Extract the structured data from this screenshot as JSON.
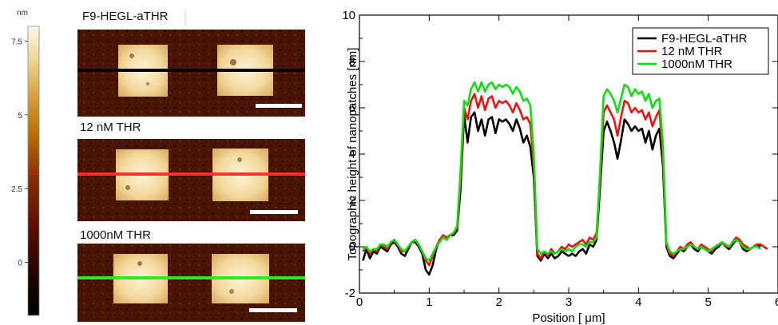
{
  "colorbar": {
    "unit": "nm",
    "ticks": [
      "7.5",
      "5",
      "2.5",
      "0"
    ],
    "tick_values": [
      7.5,
      5,
      2.5,
      0
    ],
    "range": [
      -1.8,
      8.0
    ],
    "marker_value": 3.0,
    "marker_color": "#d02020"
  },
  "afm_panels": [
    {
      "title": "F9-HEGL-aTHR",
      "line_color": "#000000"
    },
    {
      "title": "12 nM THR",
      "line_color": "#ff3030"
    },
    {
      "title": "1000nM THR",
      "line_color": "#22ee22"
    }
  ],
  "chart_data": {
    "type": "line",
    "xlabel": "Position [ μm]",
    "ylabel": "Topographic height of nanopatches [nm]",
    "xlim": [
      0,
      6
    ],
    "ylim": [
      -2,
      10
    ],
    "xticks": [
      "0",
      "1",
      "2",
      "3",
      "4",
      "5",
      "6"
    ],
    "yticks": [
      "-2",
      "0",
      "2",
      "4",
      "6",
      "8",
      "10"
    ],
    "legend_position": "top-right",
    "series": [
      {
        "name": "F9-HEGL-aTHR",
        "color": "#000000",
        "x": [
          0.05,
          0.1,
          0.15,
          0.2,
          0.25,
          0.3,
          0.35,
          0.4,
          0.45,
          0.5,
          0.55,
          0.6,
          0.65,
          0.7,
          0.75,
          0.8,
          0.85,
          0.9,
          0.95,
          1.0,
          1.05,
          1.1,
          1.15,
          1.2,
          1.25,
          1.3,
          1.35,
          1.4,
          1.45,
          1.5,
          1.55,
          1.6,
          1.65,
          1.7,
          1.75,
          1.8,
          1.85,
          1.9,
          1.95,
          2.0,
          2.05,
          2.1,
          2.15,
          2.2,
          2.25,
          2.3,
          2.35,
          2.4,
          2.45,
          2.5,
          2.55,
          2.6,
          2.65,
          2.7,
          2.75,
          2.8,
          2.85,
          2.9,
          2.95,
          3.0,
          3.05,
          3.1,
          3.15,
          3.2,
          3.25,
          3.3,
          3.35,
          3.4,
          3.45,
          3.5,
          3.55,
          3.6,
          3.65,
          3.7,
          3.75,
          3.8,
          3.85,
          3.9,
          3.95,
          4.0,
          4.05,
          4.1,
          4.15,
          4.2,
          4.25,
          4.3,
          4.35,
          4.4,
          4.45,
          4.5,
          4.55,
          4.6,
          4.65,
          4.7,
          4.75,
          4.8,
          4.85,
          4.9,
          4.95,
          5.0,
          5.05,
          5.1,
          5.15,
          5.2,
          5.25,
          5.3,
          5.35,
          5.4,
          5.45,
          5.5,
          5.55,
          5.6,
          5.65,
          5.7,
          5.75
        ],
        "y": [
          -0.6,
          -0.1,
          -0.5,
          -0.2,
          -0.3,
          0.0,
          -0.1,
          -0.2,
          0.1,
          0.2,
          0.0,
          -0.3,
          -0.4,
          -0.1,
          0.2,
          0.2,
          0.0,
          -0.3,
          -1.0,
          -1.2,
          -0.8,
          -0.1,
          0.3,
          0.4,
          0.3,
          0.5,
          0.5,
          0.7,
          2.5,
          5.7,
          4.5,
          5.6,
          5.8,
          5.0,
          5.5,
          4.8,
          5.5,
          5.6,
          4.9,
          5.5,
          5.4,
          5.5,
          5.3,
          5.0,
          5.5,
          5.1,
          4.5,
          4.8,
          4.3,
          3.0,
          -0.4,
          -0.6,
          -0.3,
          -0.5,
          -0.3,
          -0.5,
          -0.4,
          -0.2,
          -0.3,
          -0.4,
          -0.3,
          -0.4,
          -0.2,
          -0.1,
          -0.3,
          0.1,
          0.0,
          0.3,
          2.6,
          5.0,
          5.4,
          5.0,
          4.5,
          3.8,
          4.6,
          5.5,
          5.3,
          5.0,
          5.2,
          5.0,
          5.1,
          4.5,
          5.0,
          4.2,
          4.8,
          5.1,
          3.5,
          0.0,
          -0.4,
          -0.5,
          -0.3,
          -0.1,
          -0.2,
          0.0,
          0.1,
          -0.1,
          -0.2,
          0.0,
          -0.1,
          -0.2,
          -0.3,
          -0.1,
          0.0,
          0.2,
          0.0,
          -0.1,
          0.1,
          0.3,
          0.2,
          -0.1,
          -0.2,
          -0.1,
          0.0,
          0.1,
          0.0
        ]
      },
      {
        "name": "12 nM THR",
        "color": "#ee1111",
        "x": [
          0.05,
          0.1,
          0.15,
          0.2,
          0.25,
          0.3,
          0.35,
          0.4,
          0.45,
          0.5,
          0.55,
          0.6,
          0.65,
          0.7,
          0.75,
          0.8,
          0.85,
          0.9,
          0.95,
          1.0,
          1.05,
          1.1,
          1.15,
          1.2,
          1.25,
          1.3,
          1.35,
          1.4,
          1.45,
          1.5,
          1.55,
          1.6,
          1.65,
          1.7,
          1.75,
          1.8,
          1.85,
          1.9,
          1.95,
          2.0,
          2.05,
          2.1,
          2.15,
          2.2,
          2.25,
          2.3,
          2.35,
          2.4,
          2.45,
          2.5,
          2.55,
          2.6,
          2.65,
          2.7,
          2.75,
          2.8,
          2.85,
          2.9,
          2.95,
          3.0,
          3.05,
          3.1,
          3.15,
          3.2,
          3.25,
          3.3,
          3.35,
          3.4,
          3.45,
          3.5,
          3.55,
          3.6,
          3.65,
          3.7,
          3.75,
          3.8,
          3.85,
          3.9,
          3.95,
          4.0,
          4.05,
          4.1,
          4.15,
          4.2,
          4.25,
          4.3,
          4.35,
          4.4,
          4.45,
          4.5,
          4.55,
          4.6,
          4.65,
          4.7,
          4.75,
          4.8,
          4.85,
          4.9,
          4.95,
          5.0,
          5.05,
          5.1,
          5.15,
          5.2,
          5.25,
          5.3,
          5.35,
          5.4,
          5.45,
          5.5,
          5.55,
          5.6,
          5.65,
          5.7,
          5.75,
          5.8,
          5.85
        ],
        "y": [
          -0.2,
          0.0,
          -0.3,
          -0.1,
          -0.2,
          0.1,
          0.0,
          -0.1,
          0.2,
          0.3,
          0.1,
          -0.2,
          -0.2,
          0.0,
          0.2,
          0.3,
          0.1,
          -0.2,
          -0.6,
          -0.8,
          -0.4,
          0.0,
          0.3,
          0.5,
          0.4,
          0.5,
          0.6,
          0.8,
          3.0,
          6.0,
          5.5,
          6.3,
          6.6,
          6.0,
          6.5,
          5.9,
          6.4,
          6.5,
          6.0,
          6.3,
          6.2,
          6.3,
          6.1,
          5.8,
          6.2,
          5.9,
          5.5,
          5.6,
          5.3,
          3.5,
          -0.3,
          -0.5,
          -0.2,
          -0.4,
          -0.1,
          -0.3,
          -0.2,
          0.0,
          -0.1,
          0.1,
          0.0,
          0.1,
          0.2,
          0.3,
          0.1,
          0.4,
          0.3,
          0.6,
          3.0,
          5.8,
          6.1,
          5.8,
          5.5,
          4.8,
          5.6,
          6.3,
          6.2,
          5.8,
          6.0,
          5.8,
          5.9,
          5.5,
          5.8,
          5.2,
          5.6,
          5.9,
          4.0,
          0.1,
          -0.3,
          -0.4,
          -0.2,
          0.0,
          -0.1,
          0.1,
          0.2,
          0.0,
          -0.1,
          0.1,
          0.0,
          -0.1,
          -0.2,
          0.0,
          0.1,
          0.2,
          0.0,
          0.0,
          0.2,
          0.4,
          0.3,
          0.1,
          0.0,
          -0.1,
          0.0,
          0.1,
          0.1,
          0.0,
          -0.1
        ]
      },
      {
        "name": "1000nM THR",
        "color": "#11dd11",
        "x": [
          0.05,
          0.1,
          0.15,
          0.2,
          0.25,
          0.3,
          0.35,
          0.4,
          0.45,
          0.5,
          0.55,
          0.6,
          0.65,
          0.7,
          0.75,
          0.8,
          0.85,
          0.9,
          0.95,
          1.0,
          1.05,
          1.1,
          1.15,
          1.2,
          1.25,
          1.3,
          1.35,
          1.4,
          1.45,
          1.5,
          1.55,
          1.6,
          1.65,
          1.7,
          1.75,
          1.8,
          1.85,
          1.9,
          1.95,
          2.0,
          2.05,
          2.1,
          2.15,
          2.2,
          2.25,
          2.3,
          2.35,
          2.4,
          2.45,
          2.5,
          2.55,
          2.6,
          2.65,
          2.7,
          2.75,
          2.8,
          2.85,
          2.9,
          2.95,
          3.0,
          3.05,
          3.1,
          3.15,
          3.2,
          3.25,
          3.3,
          3.35,
          3.4,
          3.45,
          3.5,
          3.55,
          3.6,
          3.65,
          3.7,
          3.75,
          3.8,
          3.85,
          3.9,
          3.95,
          4.0,
          4.05,
          4.1,
          4.15,
          4.2,
          4.25,
          4.3,
          4.35,
          4.4,
          4.45,
          4.5,
          4.55,
          4.6,
          4.65,
          4.7,
          4.75,
          4.8,
          4.85,
          4.9,
          4.95,
          5.0,
          5.05,
          5.1,
          5.15,
          5.2,
          5.25,
          5.3,
          5.35,
          5.4,
          5.45,
          5.5,
          5.55,
          5.6,
          5.65,
          5.7,
          5.75
        ],
        "y": [
          -0.1,
          0.0,
          -0.2,
          -0.1,
          -0.1,
          0.1,
          0.1,
          0.0,
          0.2,
          0.3,
          0.1,
          -0.1,
          -0.2,
          0.0,
          0.2,
          0.3,
          0.1,
          -0.2,
          -0.5,
          -0.6,
          -0.3,
          0.0,
          0.2,
          0.4,
          0.3,
          0.5,
          0.6,
          0.9,
          3.3,
          6.3,
          6.1,
          6.8,
          7.1,
          6.7,
          7.1,
          6.7,
          7.0,
          7.1,
          6.8,
          7.0,
          6.9,
          7.0,
          6.9,
          6.6,
          6.9,
          6.7,
          6.3,
          6.4,
          6.1,
          4.0,
          -0.1,
          -0.3,
          -0.2,
          -0.3,
          -0.2,
          -0.3,
          -0.2,
          -0.1,
          -0.2,
          -0.1,
          -0.2,
          0.0,
          0.1,
          0.1,
          0.0,
          0.2,
          0.2,
          0.4,
          3.3,
          6.5,
          6.8,
          6.6,
          6.3,
          5.8,
          6.4,
          7.0,
          6.9,
          6.5,
          6.8,
          6.6,
          6.7,
          6.3,
          6.6,
          6.0,
          6.3,
          6.4,
          4.5,
          0.2,
          -0.2,
          -0.3,
          -0.2,
          -0.1,
          -0.1,
          0.0,
          0.1,
          0.0,
          -0.1,
          0.0,
          -0.1,
          -0.2,
          -0.1,
          0.0,
          0.1,
          0.2,
          0.1,
          0.0,
          0.2,
          0.3,
          0.2,
          0.0,
          -0.1,
          -0.1,
          0.0,
          0.0,
          -0.1
        ]
      }
    ]
  }
}
